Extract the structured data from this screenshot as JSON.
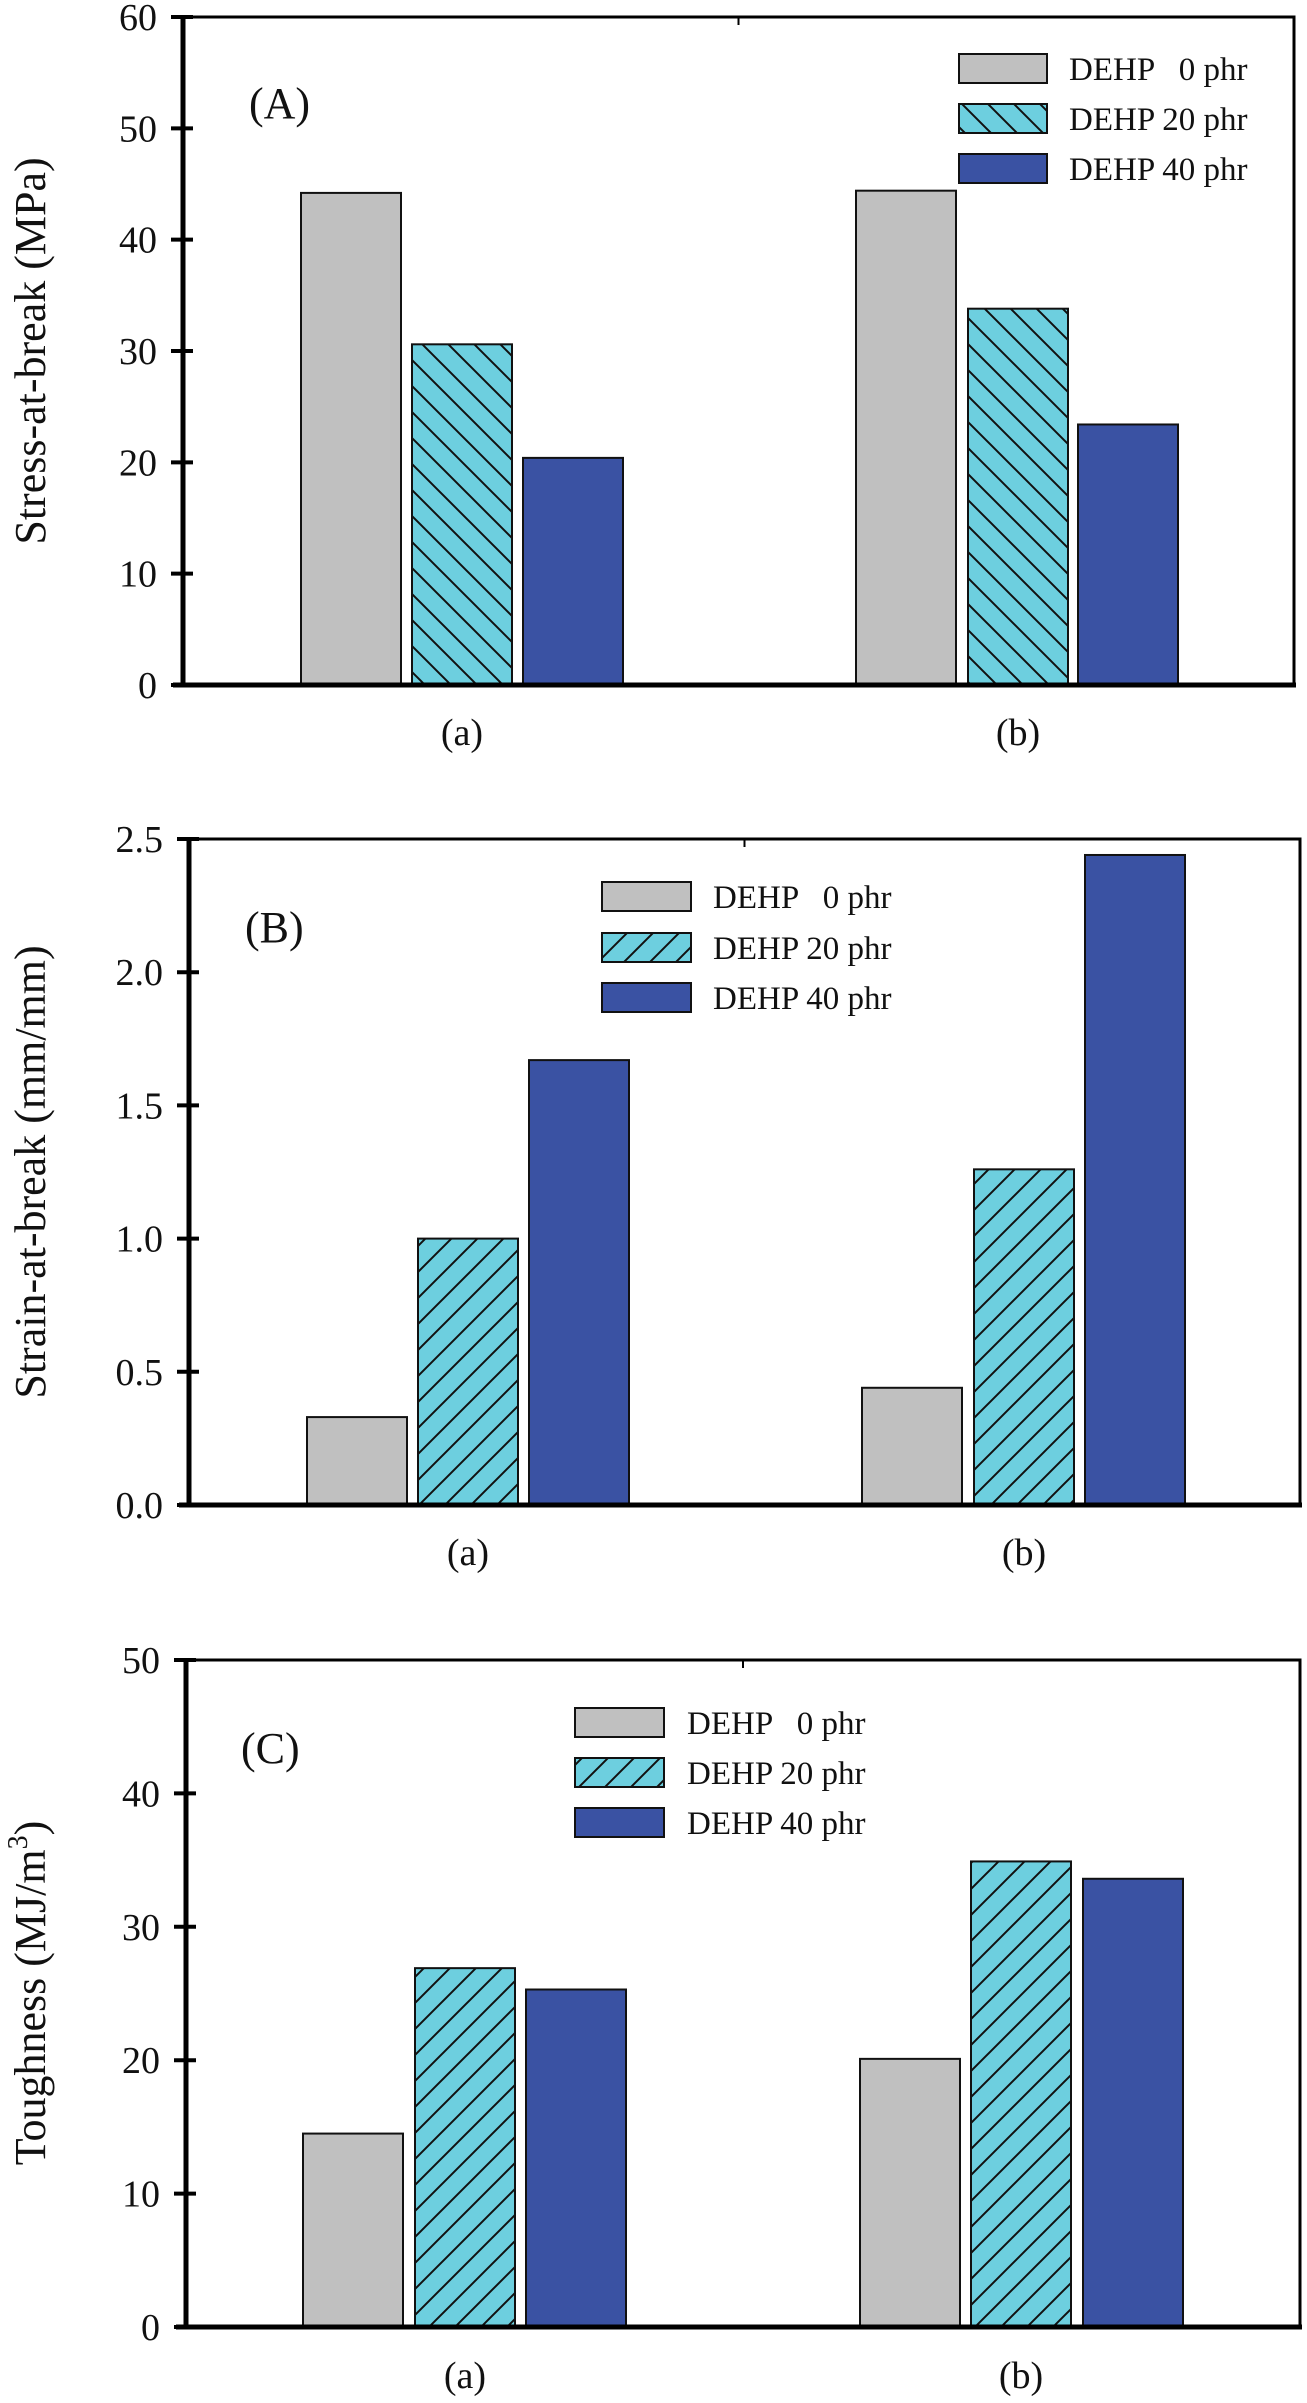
{
  "colors": {
    "gray": "#c0c0c0",
    "cyan": "#6dcfdf",
    "blue": "#3a52a3",
    "hatch": "#111111"
  },
  "chart_data": [
    {
      "type": "bar",
      "panel_label": "(A)",
      "title": "",
      "xlabel": "",
      "ylabel": "Stress-at-break (MPa)",
      "categories": [
        "(a)",
        "(b)"
      ],
      "ylim": [
        0,
        60
      ],
      "yticks": [
        0,
        10,
        20,
        30,
        40,
        50,
        60
      ],
      "ytick_labels": [
        "0",
        "10",
        "20",
        "30",
        "40",
        "50",
        "60"
      ],
      "legend_position": "top-right",
      "hatch_direction": "backslash",
      "series": [
        {
          "name": "DEHP   0 phr",
          "color_key": "gray",
          "hatch": false,
          "values": [
            44.2,
            44.4
          ]
        },
        {
          "name": "DEHP 20 phr",
          "color_key": "cyan",
          "hatch": true,
          "values": [
            30.6,
            33.8
          ]
        },
        {
          "name": "DEHP 40 phr",
          "color_key": "blue",
          "hatch": false,
          "values": [
            20.4,
            23.4
          ]
        }
      ]
    },
    {
      "type": "bar",
      "panel_label": "(B)",
      "title": "",
      "xlabel": "",
      "ylabel": "Strain-at-break (mm/mm)",
      "categories": [
        "(a)",
        "(b)"
      ],
      "ylim": [
        0,
        2.5
      ],
      "yticks": [
        0,
        0.5,
        1.0,
        1.5,
        2.0,
        2.5
      ],
      "ytick_labels": [
        "0.0",
        "0.5",
        "1.0",
        "1.5",
        "2.0",
        "2.5"
      ],
      "legend_position": "top-center",
      "hatch_direction": "slash",
      "series": [
        {
          "name": "DEHP   0 phr",
          "color_key": "gray",
          "hatch": false,
          "values": [
            0.33,
            0.44
          ]
        },
        {
          "name": "DEHP 20 phr",
          "color_key": "cyan",
          "hatch": true,
          "values": [
            1.0,
            1.26
          ]
        },
        {
          "name": "DEHP 40 phr",
          "color_key": "blue",
          "hatch": false,
          "values": [
            1.67,
            2.44
          ]
        }
      ]
    },
    {
      "type": "bar",
      "panel_label": "(C)",
      "title": "",
      "xlabel": "",
      "ylabel": "Toughness (MJ/m",
      "ylabel_superscript": "3",
      "ylabel_suffix": ")",
      "categories": [
        "(a)",
        "(b)"
      ],
      "ylim": [
        0,
        50
      ],
      "yticks": [
        0,
        10,
        20,
        30,
        40,
        50
      ],
      "ytick_labels": [
        "0",
        "10",
        "20",
        "30",
        "40",
        "50"
      ],
      "legend_position": "top-center",
      "hatch_direction": "slash",
      "series": [
        {
          "name": "DEHP   0 phr",
          "color_key": "gray",
          "hatch": false,
          "values": [
            14.5,
            20.1
          ]
        },
        {
          "name": "DEHP 20 phr",
          "color_key": "cyan",
          "hatch": true,
          "values": [
            26.9,
            34.9
          ]
        },
        {
          "name": "DEHP 40 phr",
          "color_key": "blue",
          "hatch": false,
          "values": [
            25.3,
            33.6
          ]
        }
      ]
    }
  ]
}
